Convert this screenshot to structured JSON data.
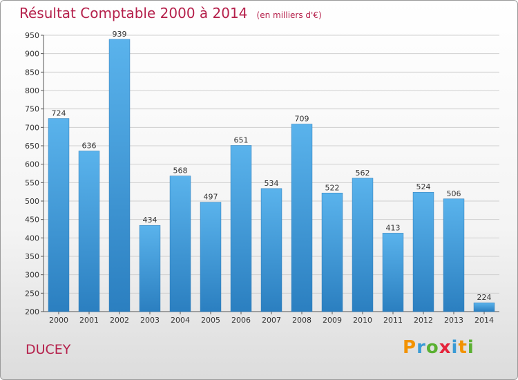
{
  "chart_data": {
    "type": "bar",
    "title": "Résultat Comptable 2000 à 2014",
    "subtitle": "(en milliers d'€)",
    "xlabel": "",
    "ylabel": "",
    "categories": [
      "2000",
      "2001",
      "2002",
      "2003",
      "2004",
      "2005",
      "2006",
      "2007",
      "2008",
      "2009",
      "2010",
      "2011",
      "2012",
      "2013",
      "2014"
    ],
    "values": [
      724,
      636,
      939,
      434,
      568,
      497,
      651,
      534,
      709,
      522,
      562,
      413,
      524,
      506,
      224
    ],
    "ylim": [
      200,
      950
    ],
    "yticks": [
      200,
      250,
      300,
      350,
      400,
      450,
      500,
      550,
      600,
      650,
      700,
      750,
      800,
      850,
      900,
      950
    ],
    "grid": true,
    "bar_color": "#4ea8e4",
    "bar_color_dark": "#2f86c8"
  },
  "footer": {
    "commune": "DUCEY",
    "brand": "Proxiti"
  },
  "colors": {
    "title": "#b5204b",
    "grid": "#cfcfcf"
  }
}
